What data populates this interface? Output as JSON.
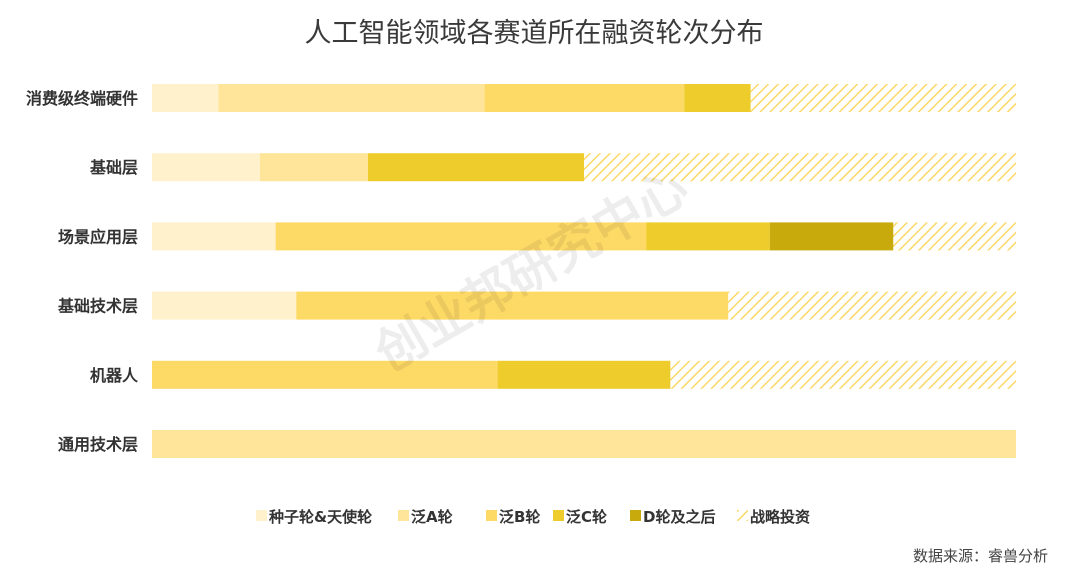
{
  "chart_data": {
    "type": "bar",
    "orientation": "horizontal",
    "stacked": true,
    "normalized": true,
    "title": "人工智能领域各赛道所在融资轮次分布",
    "categories": [
      "消费级终端硬件",
      "基础层",
      "场景应用层",
      "基础技术层",
      "机器人",
      "通用技术层"
    ],
    "series": [
      {
        "name": "种子轮&天使轮",
        "color": "#FEF1CC",
        "pattern": false,
        "values": [
          0.077,
          0.125,
          0.143,
          0.167,
          0,
          0
        ]
      },
      {
        "name": "泛A轮",
        "color": "#FEE59A",
        "pattern": false,
        "values": [
          0.308,
          0.125,
          0,
          0,
          0,
          1
        ]
      },
      {
        "name": "泛B轮",
        "color": "#FDD966",
        "pattern": false,
        "values": [
          0.231,
          0,
          0.429,
          0.5,
          0.4,
          0
        ]
      },
      {
        "name": "泛C轮",
        "color": "#EDCC2C",
        "pattern": false,
        "values": [
          0.077,
          0.25,
          0.143,
          0,
          0.2,
          0
        ]
      },
      {
        "name": "D轮及之后",
        "color": "#C8AA0D",
        "pattern": false,
        "values": [
          0,
          0,
          0.143,
          0,
          0,
          0
        ]
      },
      {
        "name": "战略投资",
        "color": "#FBD867",
        "pattern": true,
        "values": [
          0.307,
          0.5,
          0.142,
          0.333,
          0.4,
          0
        ]
      }
    ],
    "legend_position": "bottom",
    "grid": false,
    "xlim": [
      0,
      1
    ]
  },
  "watermark": "创业邦研究中心",
  "source": "数据来源：睿兽分析"
}
